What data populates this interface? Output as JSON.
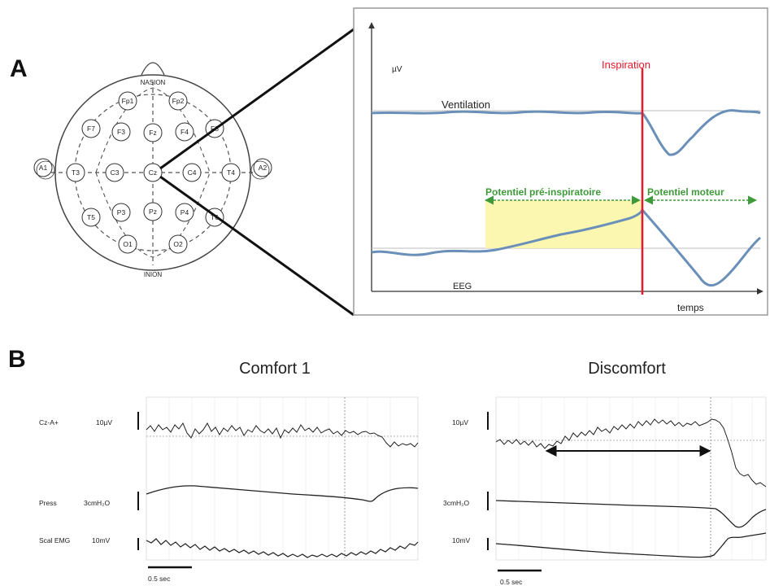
{
  "panel_a": {
    "letter": "A",
    "head": {
      "nasion": "NASION",
      "inion": "INION",
      "electrodes": {
        "fp1": "Fp1",
        "fp2": "Fp2",
        "f7": "F7",
        "f3": "F3",
        "fz": "Fz",
        "f4": "F4",
        "f8": "F8",
        "a1": "A1",
        "t3": "T3",
        "c3": "C3",
        "cz": "Cz",
        "c4": "C4",
        "t4": "T4",
        "a2": "A2",
        "t5": "T5",
        "p3": "P3",
        "pz": "Pz",
        "p4": "P4",
        "t6": "T6",
        "o1": "O1",
        "o2": "O2"
      }
    },
    "inset": {
      "y_unit": "µV",
      "inspiration": "Inspiration",
      "ventilation": "Ventilation",
      "pre_potential": "Potentiel pré-inspiratoire",
      "motor_potential": "Potentiel moteur",
      "eeg": "EEG",
      "x_label": "temps"
    }
  },
  "panel_b": {
    "letter": "B",
    "left": {
      "title": "Comfort 1",
      "cz_label": "Cz-A+",
      "cz_scale": "10µV",
      "press_label": "Press",
      "press_scale": "3cmH₂O",
      "emg_label": "Scal EMG",
      "emg_scale": "10mV",
      "time_scale": "0.5 sec"
    },
    "right": {
      "title": "Discomfort",
      "cz_scale": "10µV",
      "press_scale": "3cmH₂O",
      "emg_scale": "10mV",
      "time_scale": "0.5 sec"
    }
  },
  "colors": {
    "inspiration": "#e8192c",
    "trace": "#6a8fb8",
    "arrow_green": "#3f9a3a",
    "highlight": "#fbf6a9"
  }
}
